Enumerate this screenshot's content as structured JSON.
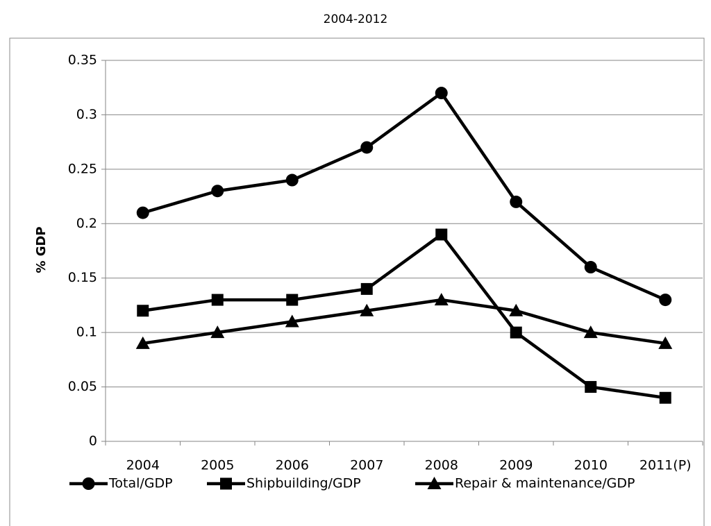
{
  "chart_data": {
    "type": "line",
    "title": "2004-2012",
    "y_label": "% GDP",
    "categories": [
      "2004",
      "2005",
      "2006",
      "2007",
      "2008",
      "2009",
      "2010",
      "2011(P)"
    ],
    "series": [
      {
        "name": "Total/GDP",
        "color": "#000000",
        "marker": "circle",
        "values": [
          0.21,
          0.23,
          0.24,
          0.27,
          0.32,
          0.22,
          0.16,
          0.13
        ]
      },
      {
        "name": "Shipbuilding/GDP",
        "color": "#000000",
        "marker": "square",
        "values": [
          0.12,
          0.13,
          0.13,
          0.14,
          0.19,
          0.1,
          0.05,
          0.04
        ]
      },
      {
        "name": "Repair & maintenance/GDP",
        "color": "#000000",
        "marker": "triangle",
        "values": [
          0.09,
          0.1,
          0.11,
          0.12,
          0.13,
          0.12,
          0.1,
          0.09
        ]
      }
    ],
    "ylim": [
      0,
      0.35
    ],
    "yticks": [
      0,
      0.05,
      0.1,
      0.15,
      0.2,
      0.25,
      0.3,
      0.35
    ],
    "grid": true,
    "legend": "bottom"
  }
}
